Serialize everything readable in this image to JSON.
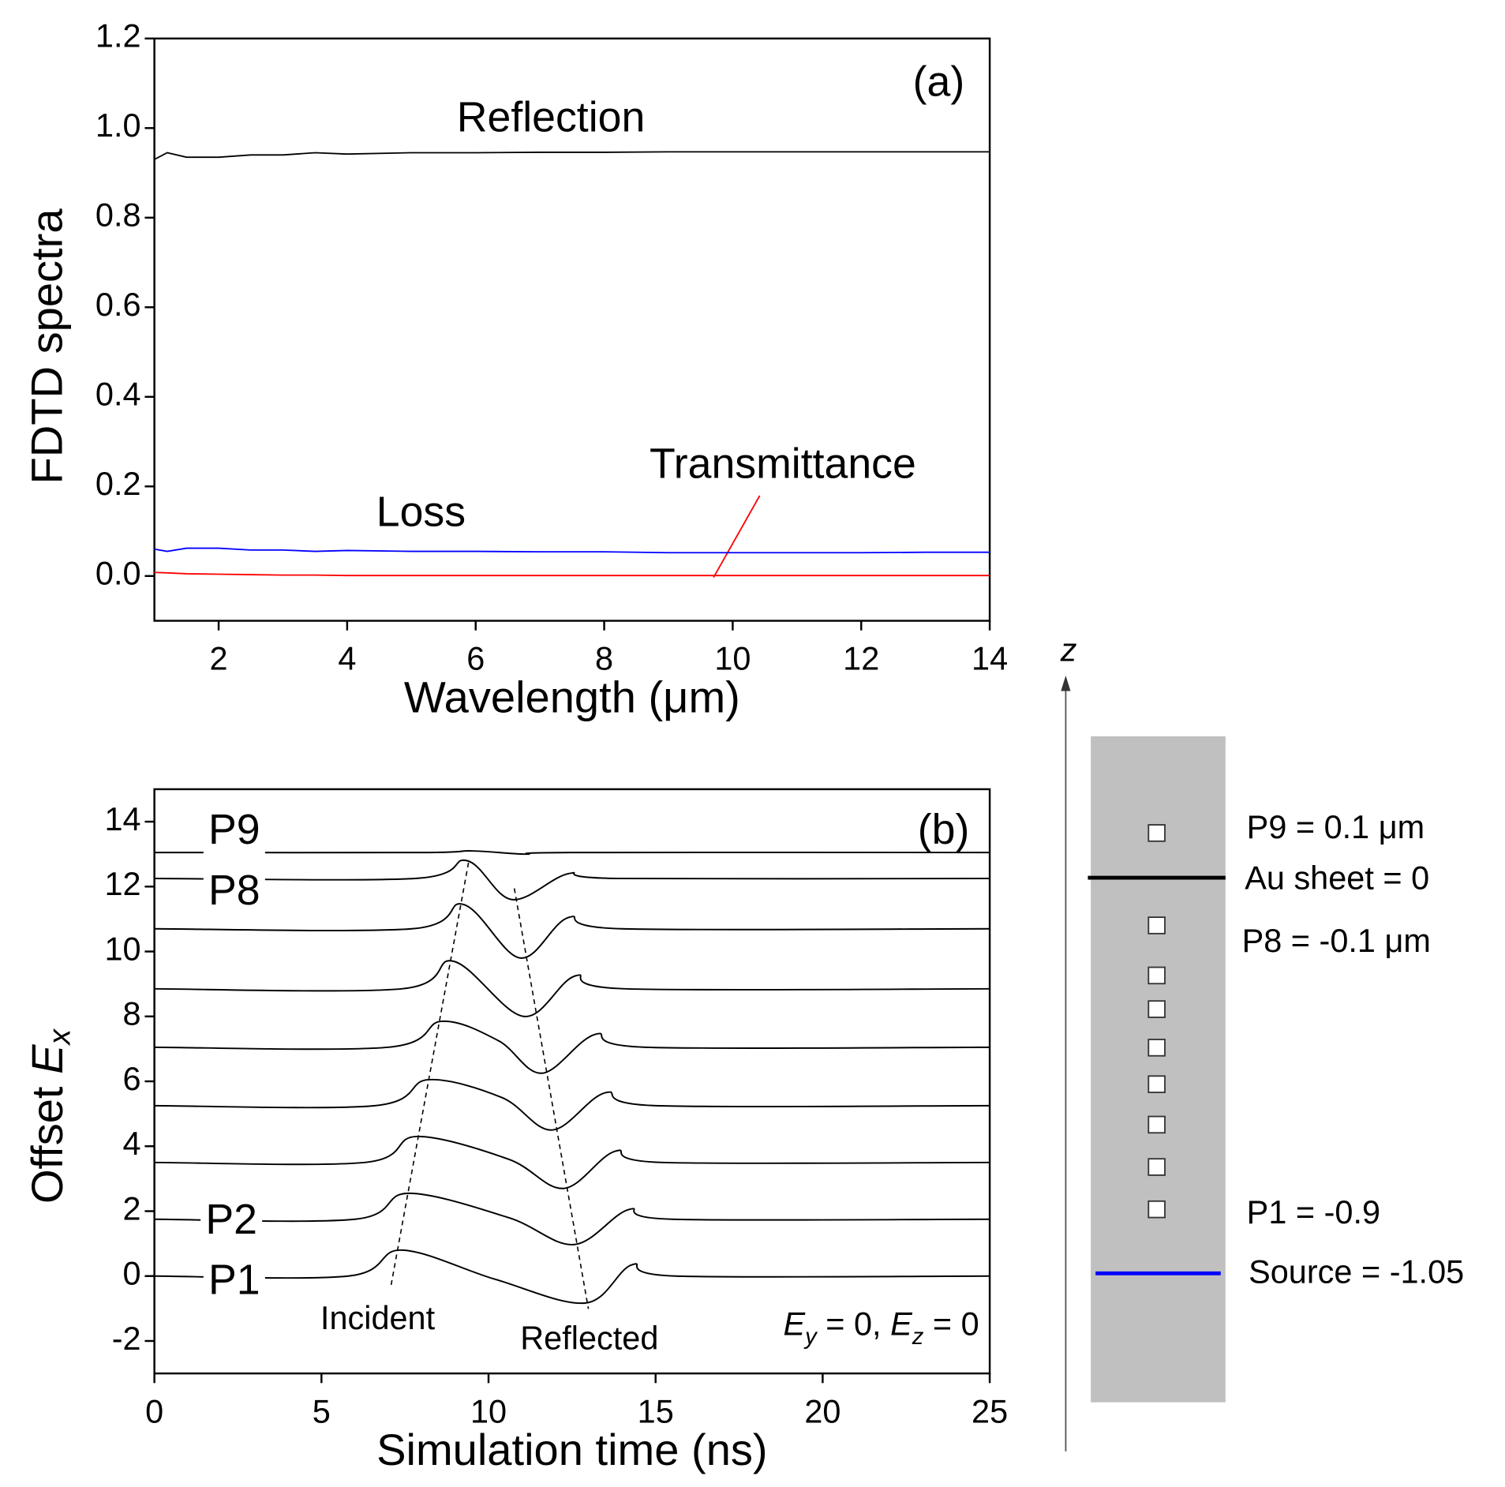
{
  "chart_data": [
    {
      "type": "line",
      "panel_label": "(a)",
      "xlabel": "Wavelength (μm)",
      "ylabel": "FDTD spectra",
      "xlim": [
        1,
        14
      ],
      "xticks": [
        2,
        4,
        6,
        8,
        10,
        12,
        14
      ],
      "ylim": [
        -0.1,
        1.2
      ],
      "yticks": [
        {
          "value": 0,
          "label": "0.0"
        },
        0.2,
        0.4,
        0.6,
        0.8,
        {
          "value": 1,
          "label": "1.0"
        },
        1.2
      ],
      "x": [
        1,
        1.2,
        1.5,
        2,
        2.5,
        3,
        3.5,
        4,
        5,
        6,
        7,
        8,
        9,
        10,
        11,
        12,
        13,
        14
      ],
      "series": [
        {
          "name": "Reflection",
          "color": "#000000",
          "values": [
            0.93,
            0.945,
            0.935,
            0.935,
            0.94,
            0.94,
            0.945,
            0.942,
            0.945,
            0.945,
            0.946,
            0.946,
            0.947,
            0.947,
            0.947,
            0.947,
            0.947,
            0.947
          ]
        },
        {
          "name": "Loss",
          "color": "#0000ff",
          "values": [
            0.06,
            0.055,
            0.062,
            0.062,
            0.058,
            0.058,
            0.055,
            0.057,
            0.055,
            0.055,
            0.054,
            0.054,
            0.052,
            0.052,
            0.052,
            0.052,
            0.053,
            0.053
          ]
        },
        {
          "name": "Transmittance",
          "color": "#ff0000",
          "values": [
            0.008,
            0.007,
            0.005,
            0.004,
            0.003,
            0.002,
            0.002,
            0.001,
            0.001,
            0.001,
            0.001,
            0.001,
            0.001,
            0.001,
            0.001,
            0.001,
            0.001,
            0.001
          ]
        }
      ]
    },
    {
      "type": "offset-line",
      "panel_label": "(b)",
      "xlabel": "Simulation time (ns)",
      "ylabel": [
        "Offset ",
        "E",
        "x"
      ],
      "xlim": [
        0,
        25
      ],
      "xticks": [
        0,
        5,
        10,
        15,
        20,
        25
      ],
      "ylim": [
        -3,
        15
      ],
      "yticks": [
        -2,
        0,
        2,
        4,
        6,
        8,
        10,
        12,
        14
      ],
      "annotations": {
        "incident": "Incident",
        "reflected": "Reflected",
        "condition": [
          "E",
          "y",
          " = 0, ",
          "E",
          "z",
          " = 0"
        ]
      },
      "series": [
        {
          "name": "P1",
          "color": "#000000",
          "x": [
            0,
            5.8,
            7.4,
            10.2,
            12.9,
            14.3,
            15.6,
            25
          ],
          "values": [
            0,
            0,
            0.8,
            -0.1,
            -0.83,
            0.35,
            0,
            0
          ]
        },
        {
          "name": "P2",
          "color": "#000000",
          "x": [
            0,
            6,
            7.6,
            10.6,
            12.55,
            14.2,
            15.5,
            25
          ],
          "values": [
            1.75,
            1.75,
            2.55,
            1.8,
            0.97,
            2.05,
            1.75,
            1.75
          ]
        },
        {
          "color": "#000000",
          "x": [
            0,
            6.3,
            7.85,
            10.6,
            12.25,
            13.8,
            15.2,
            25
          ],
          "values": [
            3.5,
            3.5,
            4.3,
            3.6,
            2.7,
            3.85,
            3.5,
            3.5
          ]
        },
        {
          "color": "#000000",
          "x": [
            0,
            6.6,
            8.2,
            10.4,
            11.9,
            13.5,
            15,
            25
          ],
          "values": [
            5.25,
            5.25,
            6.05,
            5.5,
            4.5,
            5.65,
            5.25,
            5.25
          ]
        },
        {
          "color": "#000000",
          "x": [
            0,
            7,
            8.6,
            10.3,
            11.6,
            13.2,
            14.7,
            25
          ],
          "values": [
            7.05,
            7.05,
            7.85,
            7.25,
            6.25,
            7.45,
            7.05,
            7.05
          ]
        },
        {
          "color": "#000000",
          "x": [
            0,
            7.4,
            8.95,
            11.05,
            12.6,
            14.1,
            25
          ],
          "values": [
            8.85,
            8.85,
            9.7,
            8.0,
            9.25,
            8.85,
            8.85
          ]
        },
        {
          "color": "#000000",
          "x": [
            0,
            7.7,
            9.25,
            10.95,
            12.4,
            14,
            25
          ],
          "values": [
            10.7,
            10.7,
            11.45,
            9.8,
            11.05,
            10.7,
            10.7
          ]
        },
        {
          "name": "P8",
          "color": "#000000",
          "x": [
            0,
            7.8,
            9.35,
            10.7,
            12.4,
            13.9,
            25
          ],
          "values": [
            12.25,
            12.25,
            12.8,
            11.6,
            12.4,
            12.25,
            12.25
          ]
        },
        {
          "name": "P9",
          "color": "#000000",
          "x": [
            0,
            8,
            9.5,
            11.1,
            12.5,
            25
          ],
          "values": [
            13.05,
            13.05,
            13.1,
            13.0,
            13.05,
            13.05
          ]
        }
      ]
    }
  ],
  "diagram": {
    "axis_label": "z",
    "labels": [
      "P9 = 0.1 μm",
      "Au sheet = 0",
      "P8 = -0.1 μm",
      "P1 = -0.9",
      "Source = -1.05"
    ]
  }
}
